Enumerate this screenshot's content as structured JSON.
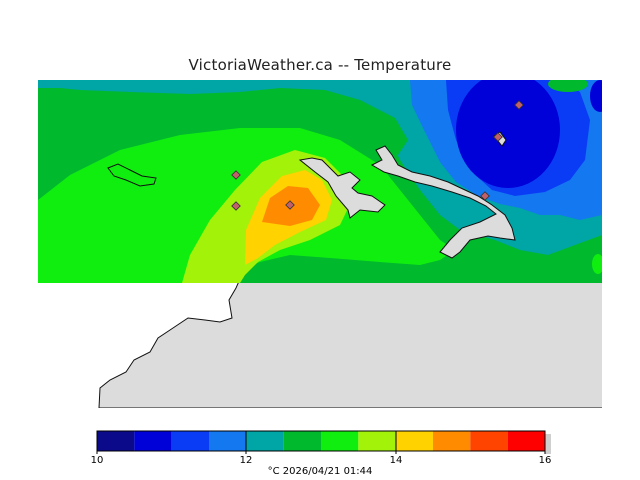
{
  "title": "VictoriaWeather.ca -- Temperature",
  "colorbar": {
    "colors": [
      "#0a0a8a",
      "#0000d8",
      "#0a3cf5",
      "#1478f0",
      "#00a5a5",
      "#00b92d",
      "#10ee10",
      "#a2f20a",
      "#ffd200",
      "#ff8c00",
      "#ff4400",
      "#ff0000"
    ],
    "ticks": [
      "10",
      "12",
      "14",
      "16"
    ],
    "caption": "°C  2026/04/21 01:44"
  },
  "colors": {
    "land_gray": "#dcdcdc",
    "coast": "#111111",
    "station_marker": "#c0606a"
  }
}
